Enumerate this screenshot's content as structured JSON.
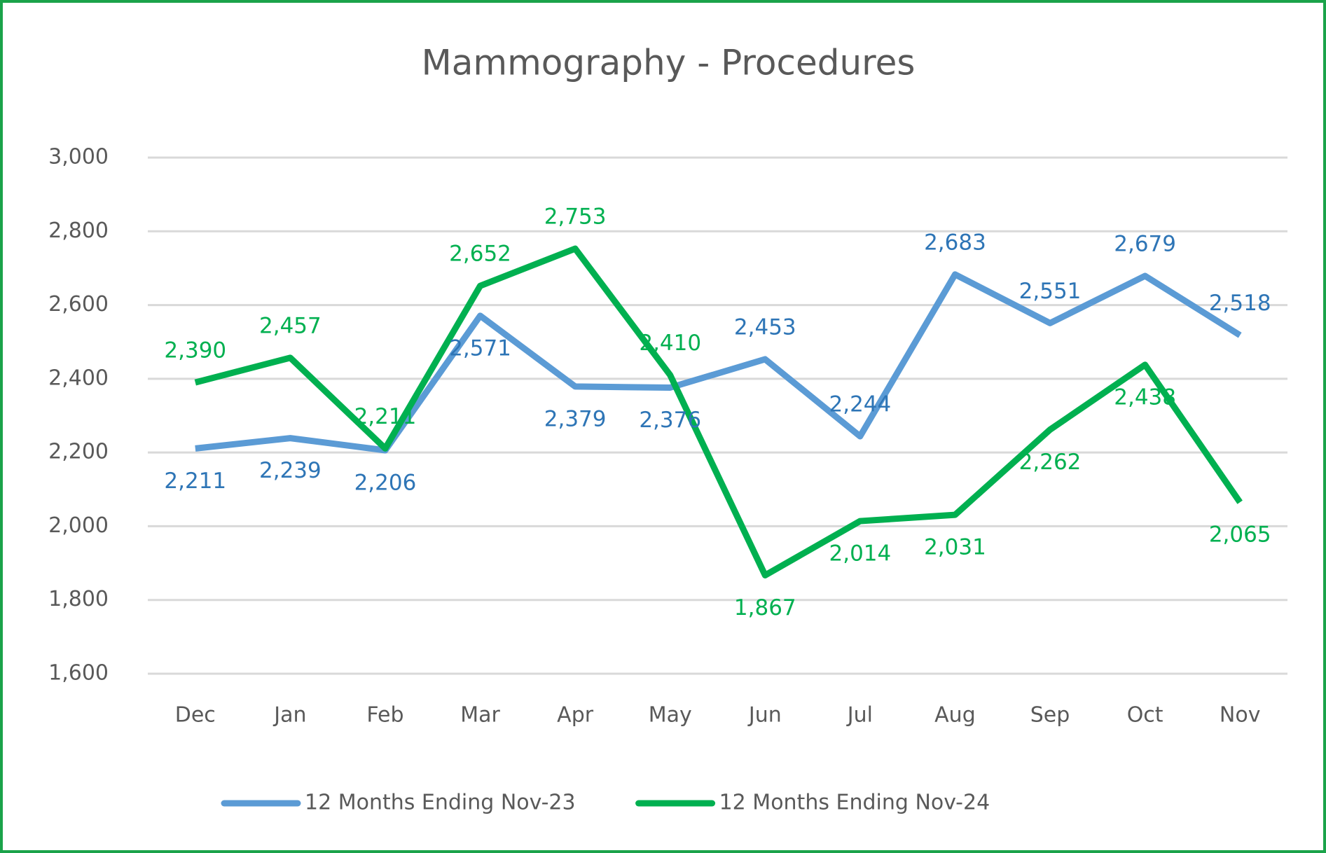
{
  "chart_data": {
    "type": "line",
    "title": "Mammography - Procedures",
    "categories": [
      "Dec",
      "Jan",
      "Feb",
      "Mar",
      "Apr",
      "May",
      "Jun",
      "Jul",
      "Aug",
      "Sep",
      "Oct",
      "Nov"
    ],
    "series": [
      {
        "name": "12 Months Ending Nov-23",
        "color": "#5b9bd5",
        "label_color": "#2e75b6",
        "values": [
          2211,
          2239,
          2206,
          2571,
          2379,
          2376,
          2453,
          2244,
          2683,
          2551,
          2679,
          2518
        ],
        "value_labels": [
          "2,211",
          "2,239",
          "2,206",
          "2,571",
          "2,379",
          "2,376",
          "2,453",
          "2,244",
          "2,683",
          "2,551",
          "2,679",
          "2,518"
        ]
      },
      {
        "name": "12 Months Ending Nov-24",
        "color": "#00b050",
        "label_color": "#00b050",
        "values": [
          2390,
          2457,
          2211,
          2652,
          2753,
          2410,
          1867,
          2014,
          2031,
          2262,
          2438,
          2065
        ],
        "value_labels": [
          "2,390",
          "2,457",
          "2,211",
          "2,652",
          "2,753",
          "2,410",
          "1,867",
          "2,014",
          "2,031",
          "2,262",
          "2,438",
          "2,065"
        ]
      }
    ],
    "ylim": [
      1600,
      3000
    ],
    "yticks": [
      {
        "value": 1600,
        "label": "1,600"
      },
      {
        "value": 1800,
        "label": "1,800"
      },
      {
        "value": 2000,
        "label": "2,000"
      },
      {
        "value": 2200,
        "label": "2,200"
      },
      {
        "value": 2400,
        "label": "2,400"
      },
      {
        "value": 2600,
        "label": "2,600"
      },
      {
        "value": 2800,
        "label": "2,800"
      },
      {
        "value": 3000,
        "label": "3,000"
      }
    ],
    "grid": true,
    "legend": "bottom"
  }
}
